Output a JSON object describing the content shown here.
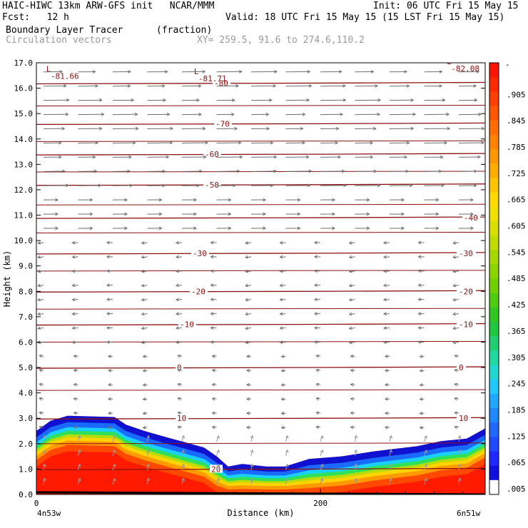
{
  "header": {
    "model_line": "HAIC-HIWC 13km ARW-GFS init   NCAR/MMM",
    "init_line": "Init: 06 UTC Fri 15 May 15",
    "fcst_label": "Fcst:   12 h",
    "valid_line": "Valid: 18 UTC Fri 15 May 15 (15 LST Fri 15 May 15)",
    "field_name": "Boundary Layer Tracer",
    "field_units": "(fraction)",
    "vector_label": "Circulation vectors",
    "xy_label": "XY= 259.5, 91.6 to 274.6,110.2"
  },
  "chart_data": {
    "type": "cross-section",
    "ylabel": "Height (km)",
    "xlabel": "Distance (km)",
    "ylim": [
      0,
      17
    ],
    "yticks": [
      "0.0",
      "1.0",
      "2.0",
      "3.0",
      "4.0",
      "5.0",
      "6.0",
      "7.0",
      "8.0",
      "9.0",
      "10.0",
      "11.0",
      "12.0",
      "13.0",
      "14.0",
      "15.0",
      "16.0",
      "17.0"
    ],
    "xlim": [
      0,
      316
    ],
    "xticks": [
      {
        "value": 0,
        "label": "0"
      },
      {
        "value": 200,
        "label": "200"
      }
    ],
    "left_endpoint_label": "4n53w",
    "right_endpoint_label": "6n51w",
    "colorbar": {
      "labels": [
        ".005",
        ".065",
        ".125",
        ".185",
        ".245",
        ".305",
        ".365",
        ".425",
        ".485",
        ".545",
        ".605",
        ".665",
        ".725",
        ".785",
        ".845",
        ".905"
      ],
      "top_label": "-"
    },
    "temperature_contours": [
      {
        "label": "-80",
        "height_km": 16.2
      },
      {
        "label": "-70",
        "height_km": 14.6
      },
      {
        "label": "-60",
        "height_km": 13.4
      },
      {
        "label": "-50",
        "height_km": 12.2
      },
      {
        "label": "-40",
        "height_km": 10.9
      },
      {
        "label": "-30",
        "height_km": 9.5
      },
      {
        "label": "-20",
        "height_km": 8.0
      },
      {
        "label": "-10",
        "height_km": 6.7
      },
      {
        "label": "0",
        "height_km": 5.0
      },
      {
        "label": "10",
        "height_km": 3.0
      },
      {
        "label": "20",
        "height_km": 1.0
      }
    ],
    "extremum_labels": [
      {
        "text": "-81.66",
        "x_km": 8,
        "height_km": 16.7
      },
      {
        "text": "-81.71",
        "x_km": 112,
        "height_km": 16.6
      },
      {
        "text": "-82.08",
        "x_km": 290,
        "height_km": 17.0
      }
    ],
    "tracer_top_km": [
      {
        "x": 0,
        "top": 2.5
      },
      {
        "x": 10,
        "top": 2.9
      },
      {
        "x": 22,
        "top": 3.1
      },
      {
        "x": 55,
        "top": 3.05
      },
      {
        "x": 63,
        "top": 2.75
      },
      {
        "x": 76,
        "top": 2.5
      },
      {
        "x": 95,
        "top": 2.2
      },
      {
        "x": 105,
        "top": 2.05
      },
      {
        "x": 118,
        "top": 1.85
      },
      {
        "x": 127,
        "top": 1.5
      },
      {
        "x": 135,
        "top": 1.1
      },
      {
        "x": 145,
        "top": 1.2
      },
      {
        "x": 162,
        "top": 1.1
      },
      {
        "x": 175,
        "top": 1.1
      },
      {
        "x": 192,
        "top": 1.4
      },
      {
        "x": 215,
        "top": 1.5
      },
      {
        "x": 238,
        "top": 1.7
      },
      {
        "x": 268,
        "top": 1.9
      },
      {
        "x": 285,
        "top": 2.1
      },
      {
        "x": 303,
        "top": 2.2
      },
      {
        "x": 316,
        "top": 2.6
      }
    ]
  }
}
